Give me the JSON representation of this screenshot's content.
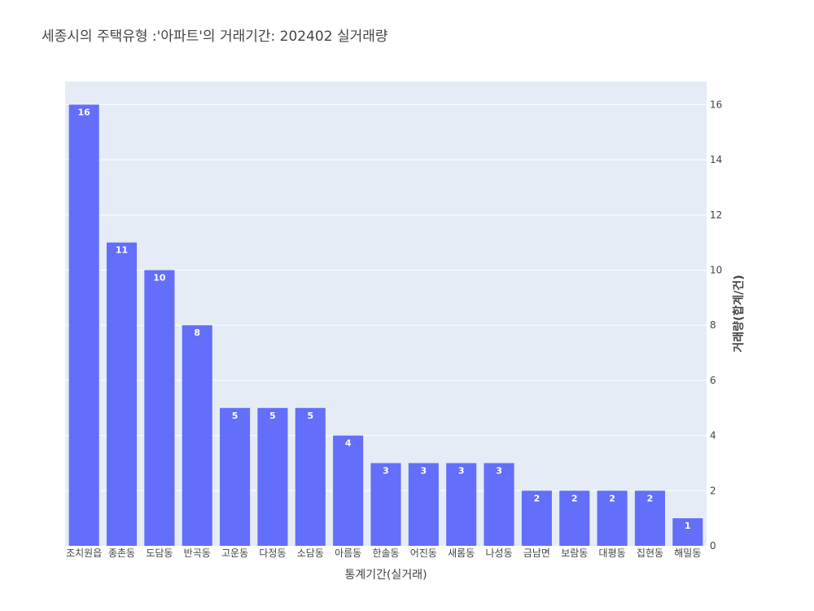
{
  "chart_data": {
    "type": "bar",
    "title": "세종시의 주택유형 :'아파트'의 거래기간: 202402 실거래량",
    "xlabel": "통계기간(실거래)",
    "ylabel": "거래량(합계/건)",
    "categories": [
      "조치원읍",
      "종촌동",
      "도담동",
      "반곡동",
      "고운동",
      "다정동",
      "소담동",
      "아름동",
      "한솔동",
      "어진동",
      "새롬동",
      "나성동",
      "금남면",
      "보람동",
      "대평동",
      "집현동",
      "해밀동"
    ],
    "values": [
      16,
      11,
      10,
      8,
      5,
      5,
      5,
      4,
      3,
      3,
      3,
      3,
      2,
      2,
      2,
      2,
      1
    ],
    "ylim": [
      0,
      16.84
    ],
    "yticks": [
      0,
      2,
      4,
      6,
      8,
      10,
      12,
      14,
      16
    ],
    "y_axis_side": "right",
    "grid": true,
    "colors": {
      "bar": "#636efa",
      "plot_bg": "#e5ecf6",
      "grid": "#ffffff"
    }
  }
}
